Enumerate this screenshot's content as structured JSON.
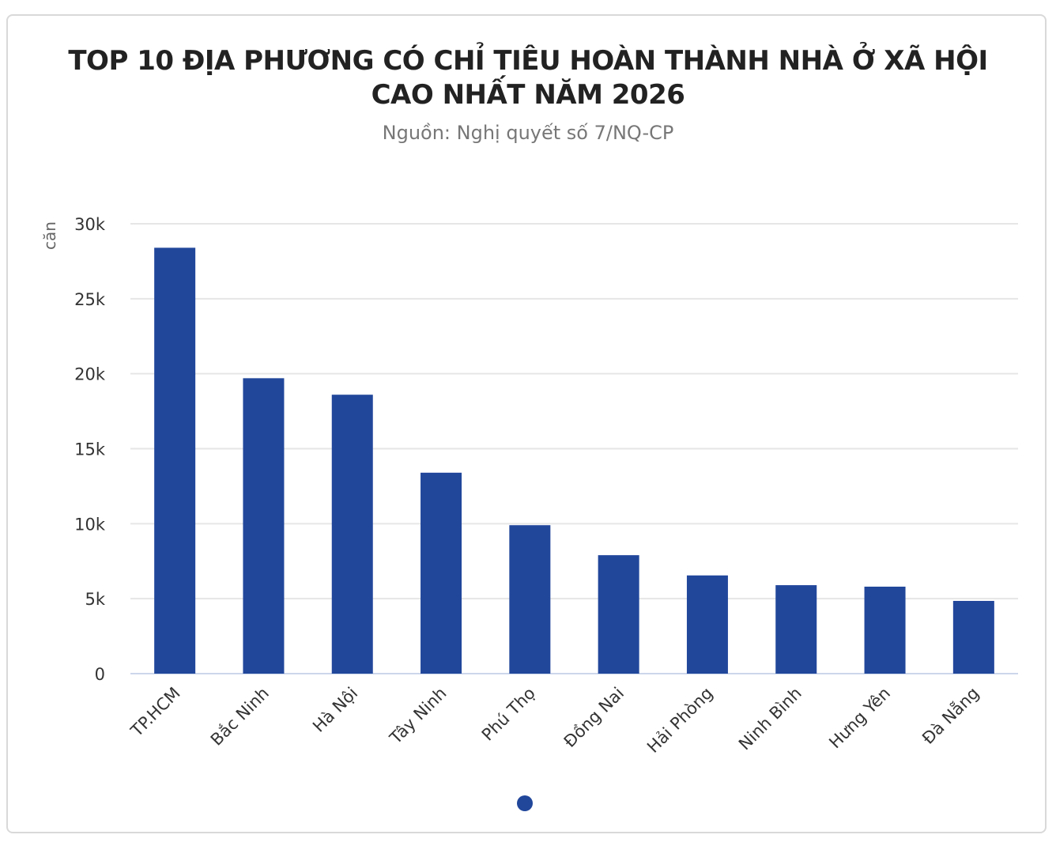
{
  "chart_data": {
    "type": "bar",
    "title": "TOP 10 ĐỊA PHƯƠNG CÓ CHỈ TIÊU HOÀN THÀNH NHÀ Ở XÃ HỘI CAO NHẤT NĂM 2026",
    "title_lines": [
      "TOP 10 ĐỊA PHƯƠNG CÓ CHỈ TIÊU HOÀN THÀNH NHÀ Ở XÃ HỘI",
      "CAO NHẤT NĂM 2026"
    ],
    "subtitle": "Nguồn: Nghị quyết số 7/NQ-CP",
    "xlabel": "",
    "ylabel": "căn",
    "ylim": [
      0,
      30000
    ],
    "yticks": [
      0,
      5000,
      10000,
      15000,
      20000,
      25000,
      30000
    ],
    "ytick_labels": [
      "0",
      "5k",
      "10k",
      "15k",
      "20k",
      "25k",
      "30k"
    ],
    "grid": true,
    "categories": [
      "TP.HCM",
      "Bắc Ninh",
      "Hà Nội",
      "Tây Ninh",
      "Phú Thọ",
      "Đồng Nai",
      "Hải Phòng",
      "Ninh Bình",
      "Hưng Yên",
      "Đà Nẵng"
    ],
    "values": [
      28400,
      19700,
      18600,
      13400,
      9900,
      7900,
      6550,
      5900,
      5800,
      4850
    ],
    "bar_color": "#21479b",
    "legend_color": "#21479b"
  }
}
